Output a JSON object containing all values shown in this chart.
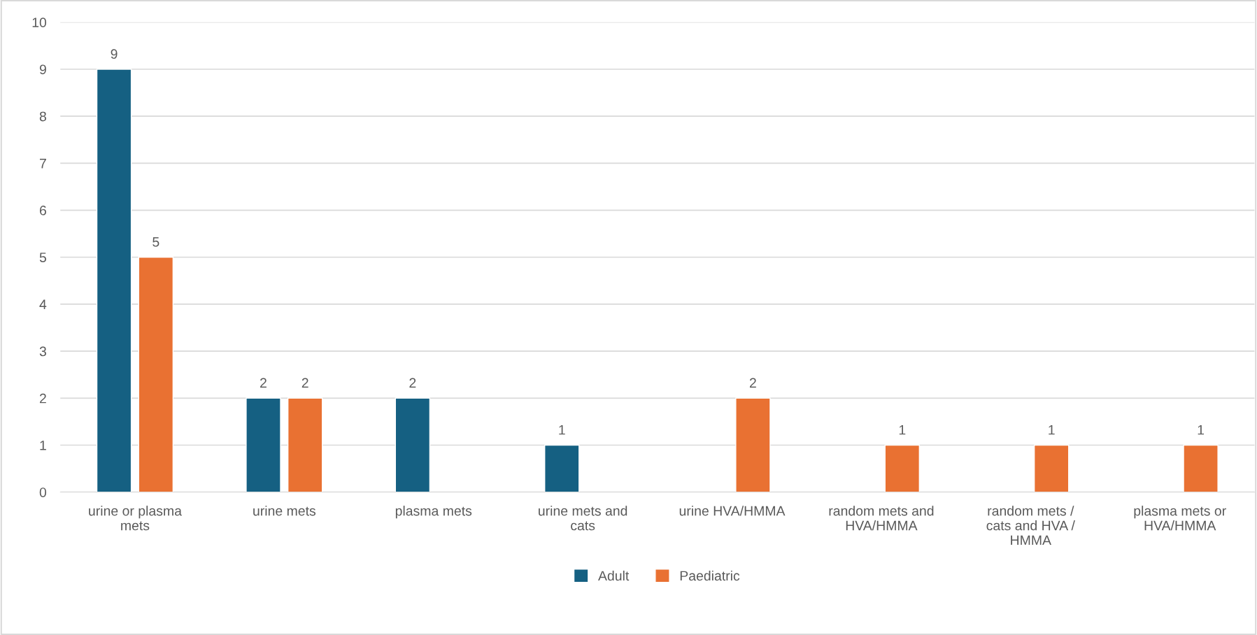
{
  "chart_data": {
    "type": "bar",
    "categories": [
      "urine or plasma mets",
      "urine mets",
      "plasma mets",
      "urine mets and cats",
      "urine HVA/HMMA",
      "random mets and HVA/HMMA",
      "random mets / cats and HVA / HMMA",
      "plasma mets or HVA/HMMA"
    ],
    "series": [
      {
        "name": "Adult",
        "color": "#156082",
        "values": [
          9,
          2,
          2,
          1,
          null,
          null,
          null,
          null
        ]
      },
      {
        "name": "Paediatric",
        "color": "#e97132",
        "values": [
          5,
          2,
          null,
          null,
          2,
          1,
          1,
          1
        ]
      }
    ],
    "ylim": [
      0,
      10
    ],
    "yticks": [
      0,
      1,
      2,
      3,
      4,
      5,
      6,
      7,
      8,
      9,
      10
    ],
    "grid": "y",
    "legend": "bottom",
    "data_labels": true
  }
}
